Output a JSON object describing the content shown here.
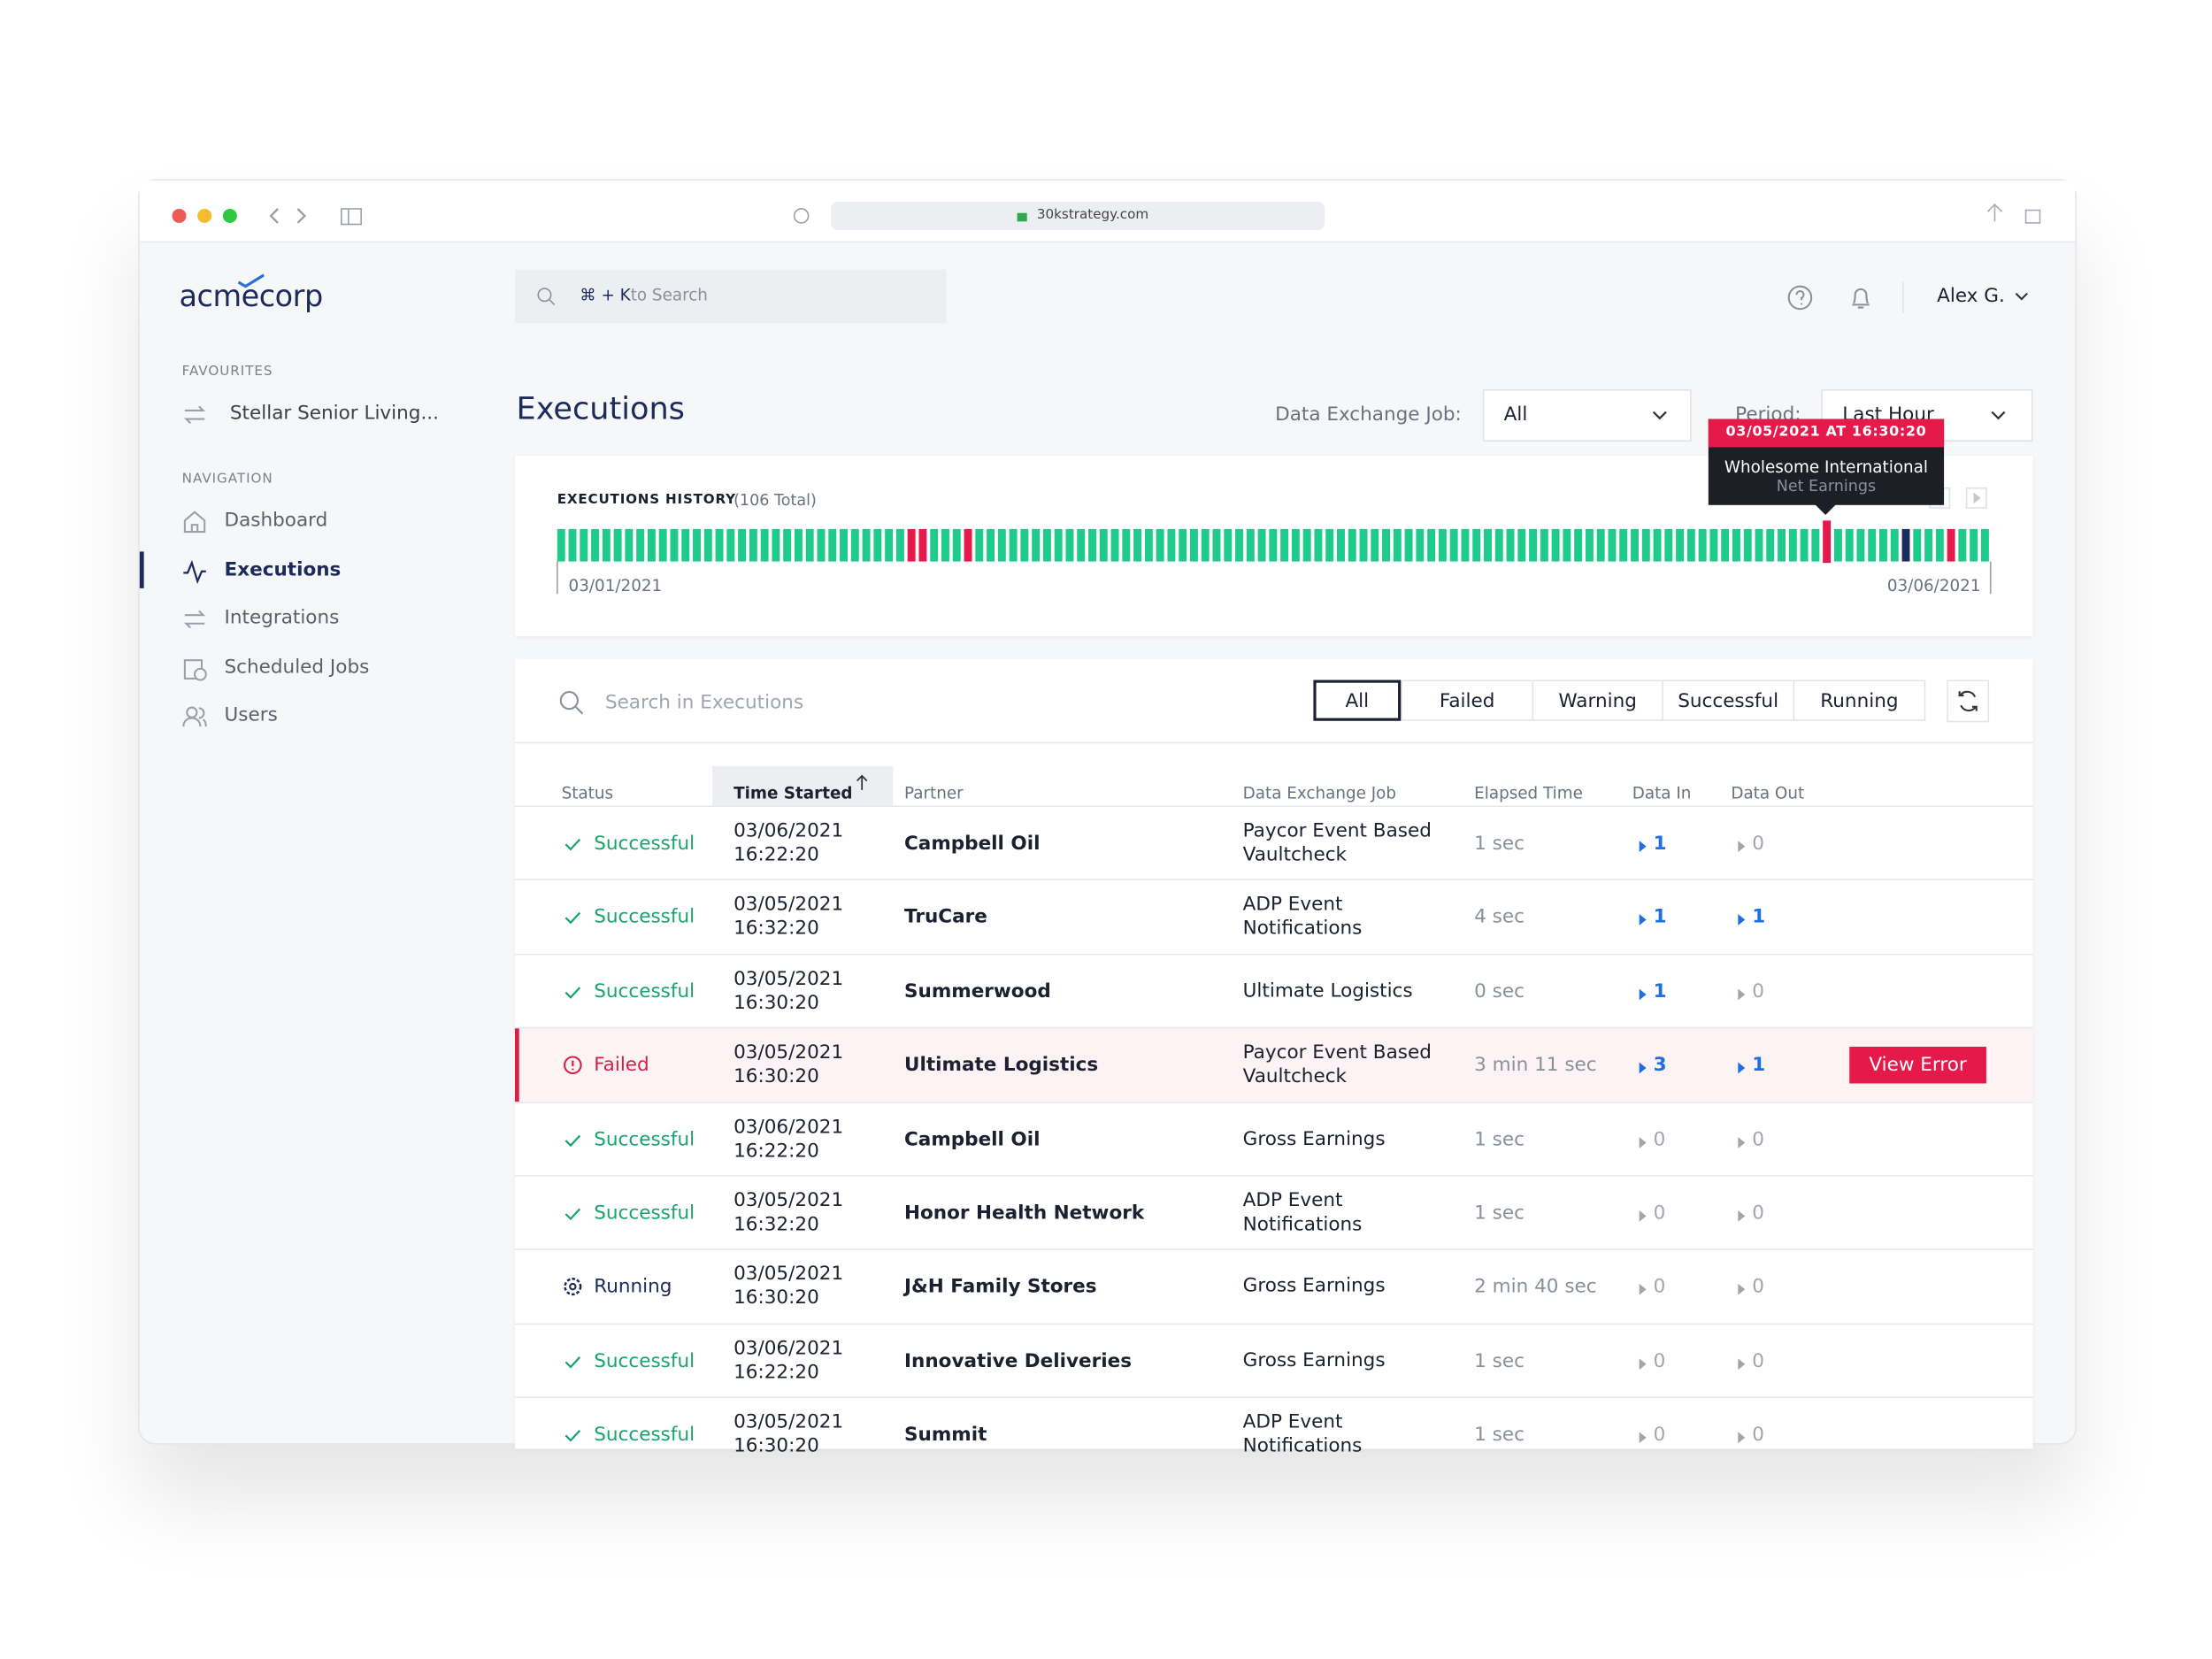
{
  "browser": {
    "url": "30kstrategy.com"
  },
  "sidebar": {
    "logo": "acmecorp",
    "favourites_label": "FAVOURITES",
    "favourites": [
      "Stellar Senior Living..."
    ],
    "navigation_label": "NAVIGATION",
    "navigation": [
      "Dashboard",
      "Executions",
      "Integrations",
      "Scheduled Jobs",
      "Users"
    ]
  },
  "topbar": {
    "search_shortcut": "⌘ + K",
    "search_placeholder": "to Search",
    "user": "Alex G."
  },
  "page": {
    "title": "Executions",
    "job_filter_label": "Data Exchange Job:",
    "job_filter_value": "All",
    "period_label": "Period:",
    "period_value": "Last Hour"
  },
  "history": {
    "title": "EXECUTIONS HISTORY",
    "total": "(106 Total)",
    "start": "03/01/2021",
    "end": "03/06/2021",
    "tooltip": {
      "time": "03/05/2021 AT 16:30:20",
      "partner": "Wholesome International",
      "job": "Net Earnings"
    }
  },
  "table": {
    "search_placeholder": "Search in Executions",
    "filters": [
      "All",
      "Failed",
      "Warning",
      "Successful",
      "Running"
    ],
    "columns": [
      "Status",
      "Time Started",
      "Partner",
      "Data Exchange Job",
      "Elapsed Time",
      "Data In",
      "Data Out"
    ],
    "action": "View Error",
    "rows": [
      [
        "Successful",
        "03/06/2021",
        "16:22:20",
        "Campbell Oil",
        "Paycor Event Based Vaultcheck",
        "1 sec",
        1,
        0
      ],
      [
        "Successful",
        "03/05/2021",
        "16:32:20",
        "TruCare",
        "ADP Event Notifications",
        "4 sec",
        1,
        1
      ],
      [
        "Successful",
        "03/05/2021",
        "16:30:20",
        "Summerwood",
        "Ultimate Logistics",
        "0 sec",
        1,
        0
      ],
      [
        "Failed",
        "03/05/2021",
        "16:30:20",
        "Ultimate Logistics",
        "Paycor Event Based Vaultcheck",
        "3 min 11 sec",
        3,
        1
      ],
      [
        "Successful",
        "03/06/2021",
        "16:22:20",
        "Campbell Oil",
        "Gross Earnings",
        "1 sec",
        0,
        0
      ],
      [
        "Successful",
        "03/05/2021",
        "16:32:20",
        "Honor Health Network",
        "ADP Event Notifications",
        "1 sec",
        0,
        0
      ],
      [
        "Running",
        "03/05/2021",
        "16:30:20",
        "J&H Family Stores",
        "Gross Earnings",
        "2 min 40 sec",
        0,
        0
      ],
      [
        "Successful",
        "03/06/2021",
        "16:22:20",
        "Innovative Deliveries",
        "Gross Earnings",
        "1 sec",
        0,
        0
      ],
      [
        "Successful",
        "03/05/2021",
        "16:30:20",
        "Summit",
        "ADP Event Notifications",
        "1 sec",
        0,
        0
      ]
    ]
  }
}
